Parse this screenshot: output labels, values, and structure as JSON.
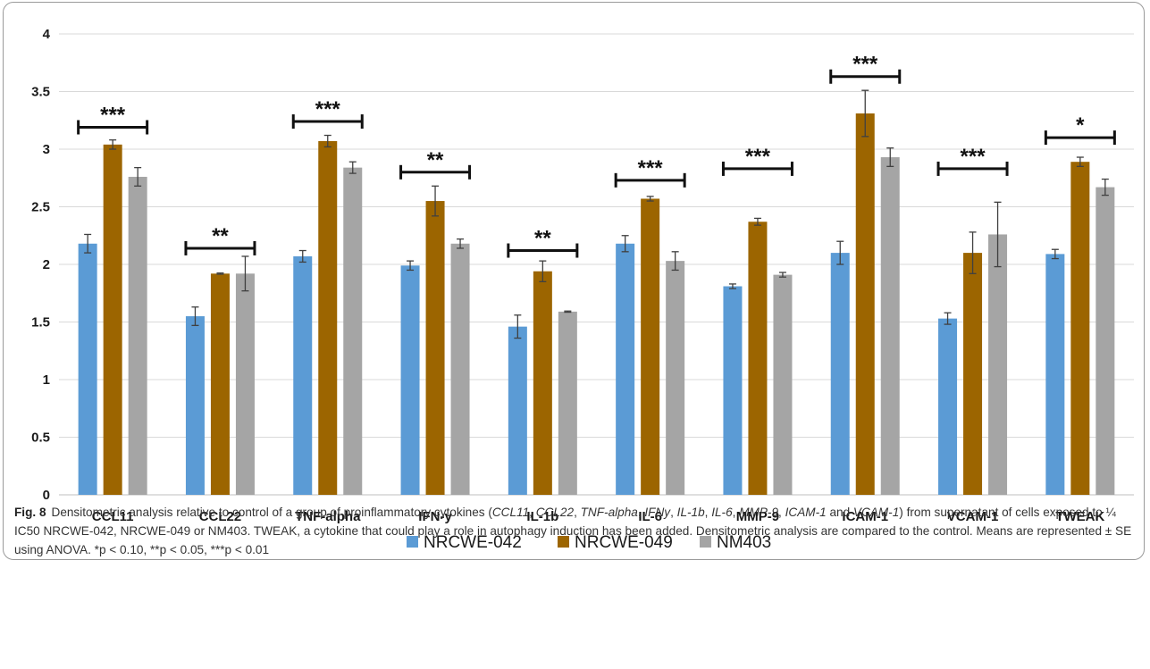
{
  "chart_data": {
    "type": "bar",
    "title": "",
    "xlabel": "",
    "ylabel": "",
    "ylim": [
      0,
      4
    ],
    "yticks": [
      "0",
      "0.5",
      "1",
      "1.5",
      "2",
      "2.5",
      "3",
      "3.5",
      "4"
    ],
    "grid": true,
    "legend_position": "bottom",
    "categories": [
      "CCL11",
      "CCL22",
      "TNF-alpha",
      "IFN-y",
      "IL-1b",
      "IL-6",
      "MMP-9",
      "ICAM-1",
      "VCAM-1",
      "TWEAK"
    ],
    "series": [
      {
        "name": "NRCWE-042",
        "color": "#5b9bd5",
        "values": [
          2.18,
          1.55,
          2.07,
          1.99,
          1.46,
          2.18,
          1.81,
          2.1,
          1.53,
          2.09
        ],
        "errors": [
          0.08,
          0.08,
          0.05,
          0.04,
          0.1,
          0.07,
          0.02,
          0.1,
          0.05,
          0.04
        ]
      },
      {
        "name": "NRCWE-049",
        "color": "#9c6500",
        "values": [
          3.04,
          1.92,
          3.07,
          2.55,
          1.94,
          2.57,
          2.37,
          3.31,
          2.1,
          2.89
        ],
        "errors": [
          0.04,
          0.005,
          0.05,
          0.13,
          0.09,
          0.02,
          0.03,
          0.2,
          0.18,
          0.04
        ]
      },
      {
        "name": "NM403",
        "color": "#a5a5a5",
        "values": [
          2.76,
          1.92,
          2.84,
          2.18,
          1.59,
          2.03,
          1.91,
          2.93,
          2.26,
          2.67
        ],
        "errors": [
          0.08,
          0.15,
          0.05,
          0.04,
          0.005,
          0.08,
          0.02,
          0.08,
          0.28,
          0.07
        ]
      }
    ],
    "significance": [
      {
        "label": "***",
        "bracket_y": 3.19
      },
      {
        "label": "**",
        "bracket_y": 2.14
      },
      {
        "label": "***",
        "bracket_y": 3.24
      },
      {
        "label": "**",
        "bracket_y": 2.8
      },
      {
        "label": "**",
        "bracket_y": 2.12
      },
      {
        "label": "***",
        "bracket_y": 2.73
      },
      {
        "label": "***",
        "bracket_y": 2.83
      },
      {
        "label": "***",
        "bracket_y": 3.63
      },
      {
        "label": "***",
        "bracket_y": 2.83
      },
      {
        "label": "*",
        "bracket_y": 3.1
      }
    ]
  },
  "caption": {
    "label": "Fig. 8",
    "text_1": "Densitometric analysis relative to control of a group of proinflammatory cytokines (",
    "it_ccl11": "CCL11",
    "sep_1": ", ",
    "it_ccl22": "CCL22",
    "sep_2": ", ",
    "it_tnf": "TNF-alpha",
    "sep_3": ", ",
    "it_ifn": "IFNy",
    "sep_4": ", ",
    "it_il1b": "IL-1b",
    "sep_5": ", ",
    "it_il6": "IL-6",
    "sep_6": ", ",
    "it_mmp9": "MMP-9",
    "sep_7": ", ",
    "it_icam1": "ICAM-1",
    "sep_8": " and ",
    "it_vcam1": "VCAM-1",
    "text_2": ") from supernatant of cells exposed to ¼ IC50 NRCWE-042, NRCWE-049 or NM403. TWEAK, a cytokine that could play a role in autophagy induction has been added. Densitometric analysis are compared to the control. Means are represented ± SE using ANOVA. *p < 0.10, **p < 0.05, ***p < 0.01"
  }
}
